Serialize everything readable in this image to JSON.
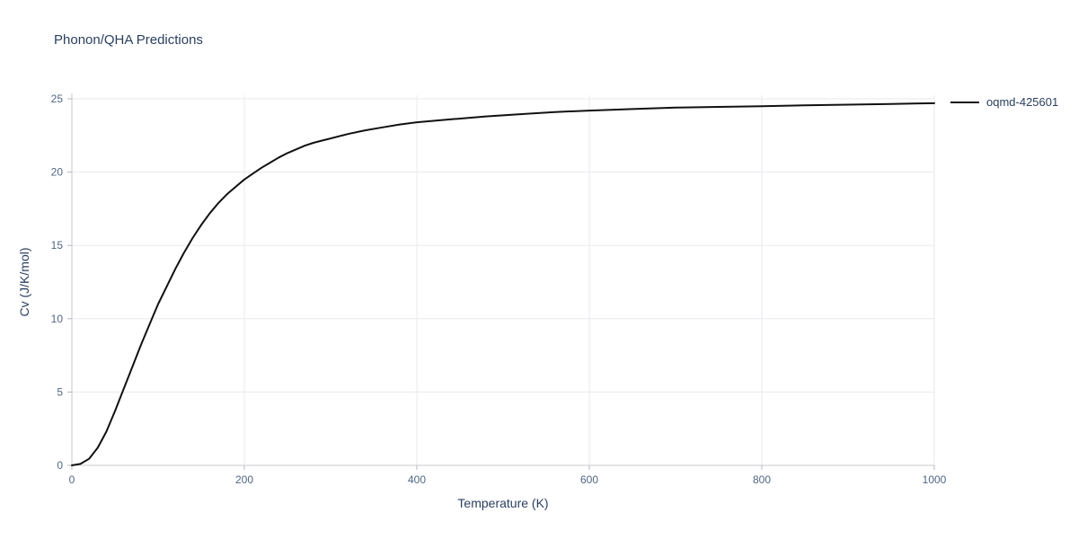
{
  "colors": {
    "title": "#2a3f5f",
    "tick": "#506784",
    "grid": "#e8eaed",
    "axis": "#c8c8c8",
    "tick_mark": "#b0b8c4",
    "line": "#111111",
    "background": "#ffffff"
  },
  "chart_data": {
    "type": "line",
    "title": "Phonon/QHA Predictions",
    "xlabel": "Temperature (K)",
    "ylabel": "Cv (J/K/mol)",
    "xlim": [
      0,
      1000
    ],
    "ylim": [
      0,
      25
    ],
    "x_ticks": [
      0,
      200,
      400,
      600,
      800,
      1000
    ],
    "y_ticks": [
      0,
      5,
      10,
      15,
      20,
      25
    ],
    "grid": true,
    "legend_position": "top-right-outside",
    "series": [
      {
        "name": "oqmd-425601",
        "color": "#111111",
        "x": [
          0,
          10,
          20,
          30,
          40,
          50,
          60,
          70,
          80,
          90,
          100,
          110,
          120,
          130,
          140,
          150,
          160,
          170,
          180,
          190,
          200,
          210,
          220,
          230,
          240,
          250,
          260,
          270,
          280,
          290,
          300,
          320,
          340,
          360,
          380,
          400,
          440,
          480,
          520,
          560,
          600,
          650,
          700,
          750,
          800,
          850,
          900,
          950,
          1000
        ],
        "y": [
          0,
          0.1,
          0.45,
          1.2,
          2.3,
          3.7,
          5.2,
          6.7,
          8.2,
          9.6,
          11.0,
          12.2,
          13.4,
          14.5,
          15.5,
          16.4,
          17.2,
          17.9,
          18.5,
          19.0,
          19.5,
          19.9,
          20.3,
          20.65,
          21.0,
          21.3,
          21.55,
          21.8,
          22.0,
          22.15,
          22.3,
          22.6,
          22.85,
          23.05,
          23.25,
          23.4,
          23.6,
          23.8,
          23.95,
          24.1,
          24.2,
          24.3,
          24.4,
          24.45,
          24.5,
          24.55,
          24.6,
          24.65,
          24.7
        ]
      }
    ]
  }
}
